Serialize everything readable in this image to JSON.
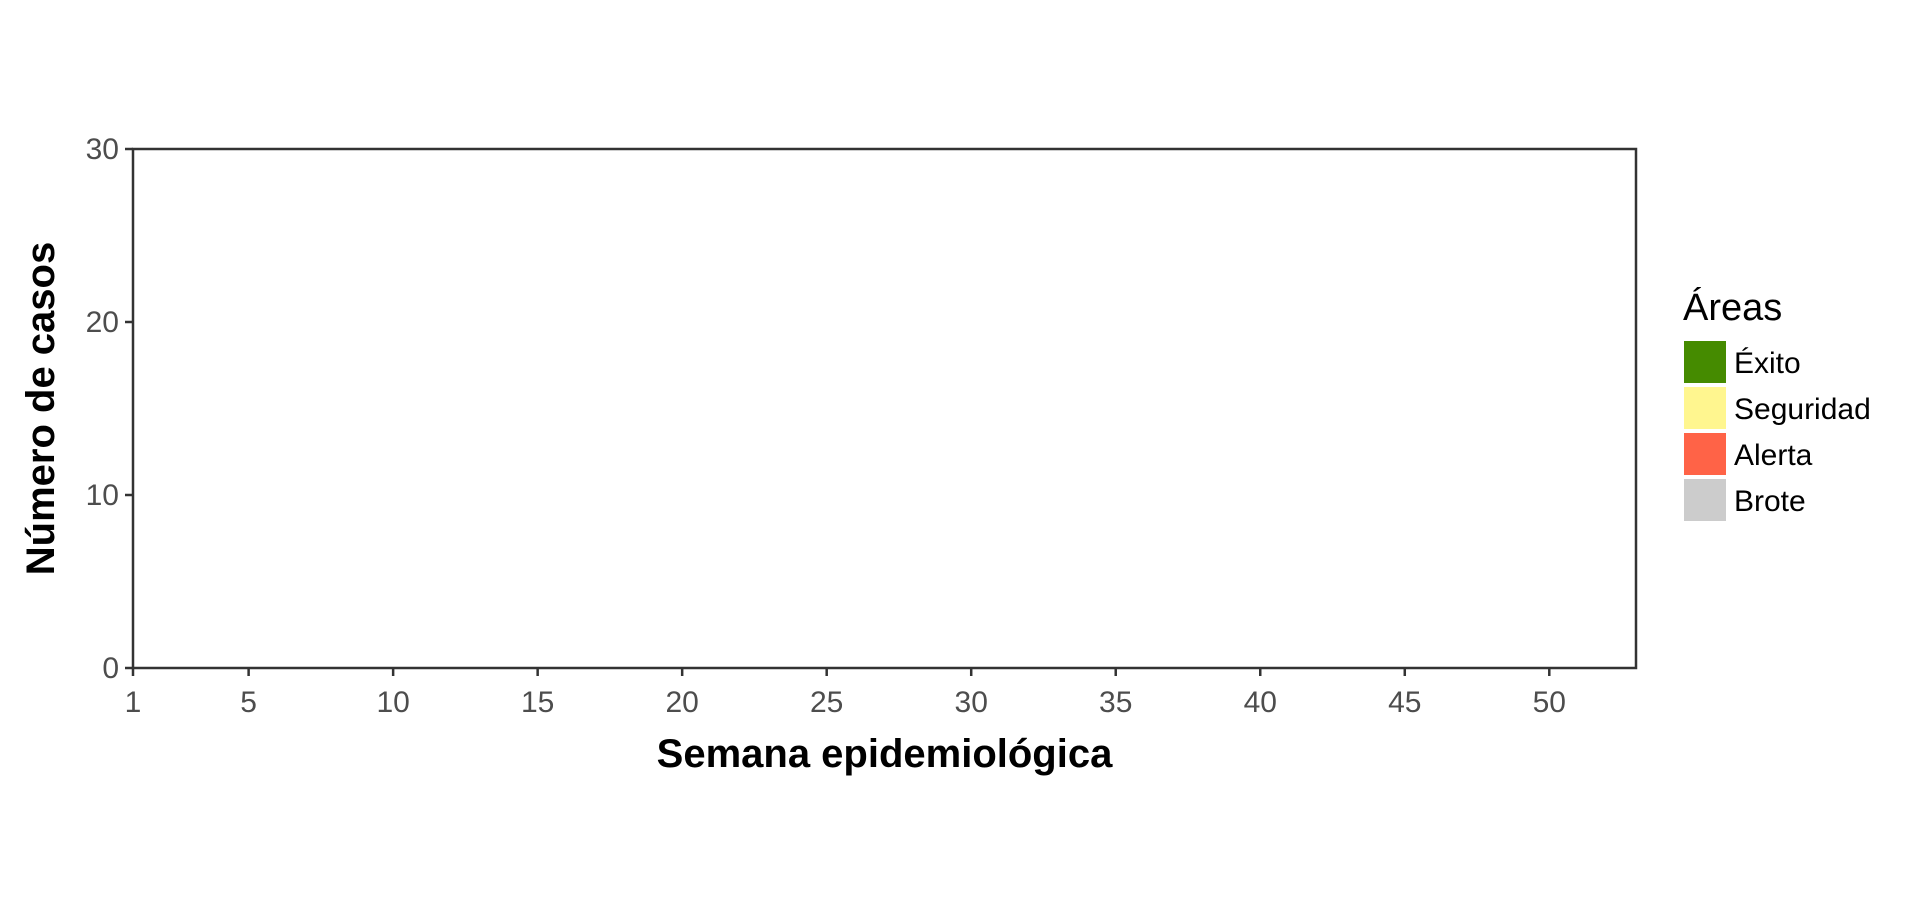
{
  "chart_data": {
    "type": "area",
    "xlabel": "Semana epidemiológica",
    "ylabel": "Número de casos",
    "xlim": [
      1,
      53
    ],
    "ylim": [
      0,
      30
    ],
    "x_ticks": [
      1,
      5,
      10,
      15,
      20,
      25,
      30,
      35,
      40,
      45,
      50
    ],
    "y_ticks": [
      0,
      10,
      20,
      30
    ],
    "grid": false,
    "legend": {
      "title": "Áreas",
      "placement": "right",
      "items": [
        {
          "label": "Éxito",
          "color": "#458b00"
        },
        {
          "label": "Seguridad",
          "color": "#fff68f"
        },
        {
          "label": "Alerta",
          "color": "#ff6347"
        },
        {
          "label": "Brote",
          "color": "#cccccc"
        }
      ]
    },
    "series": []
  }
}
